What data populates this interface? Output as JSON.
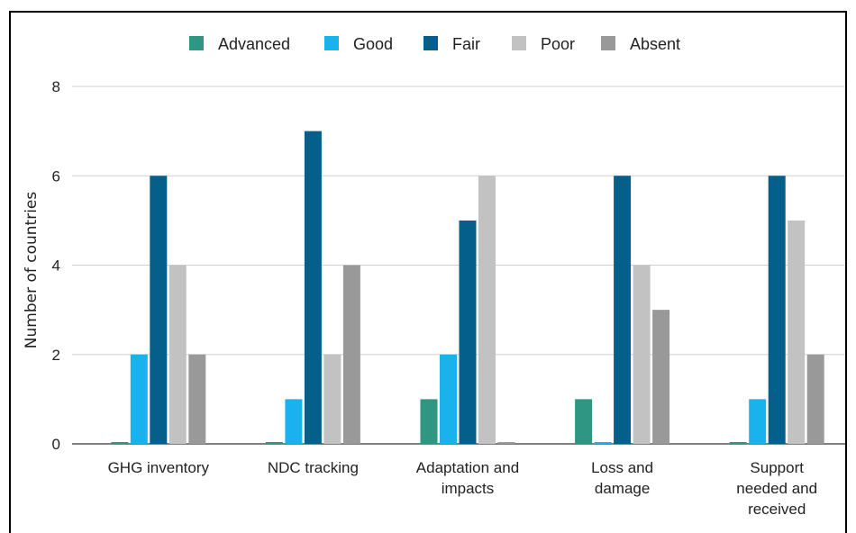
{
  "chart_data": {
    "type": "bar",
    "categories": [
      [
        "GHG inventory"
      ],
      [
        "NDC tracking"
      ],
      [
        "Adaptation and",
        "impacts"
      ],
      [
        "Loss and",
        "damage"
      ],
      [
        "Support",
        "needed and",
        "received"
      ]
    ],
    "series": [
      {
        "name": "Advanced",
        "color": "#2e9682",
        "values": [
          0,
          0,
          1,
          1,
          0
        ]
      },
      {
        "name": "Good",
        "color": "#1ab2ec",
        "values": [
          2,
          1,
          2,
          0,
          1
        ]
      },
      {
        "name": "Fair",
        "color": "#055f8b",
        "values": [
          6,
          7,
          5,
          6,
          6
        ]
      },
      {
        "name": "Poor",
        "color": "#c2c2c2",
        "values": [
          4,
          2,
          6,
          4,
          5
        ]
      },
      {
        "name": "Absent",
        "color": "#999999",
        "values": [
          2,
          4,
          0,
          3,
          2
        ]
      }
    ],
    "ylabel": "Number of countries",
    "ylim": [
      0,
      8
    ],
    "yticks": [
      0,
      2,
      4,
      6,
      8
    ],
    "grid": true,
    "legend_position": "top"
  }
}
